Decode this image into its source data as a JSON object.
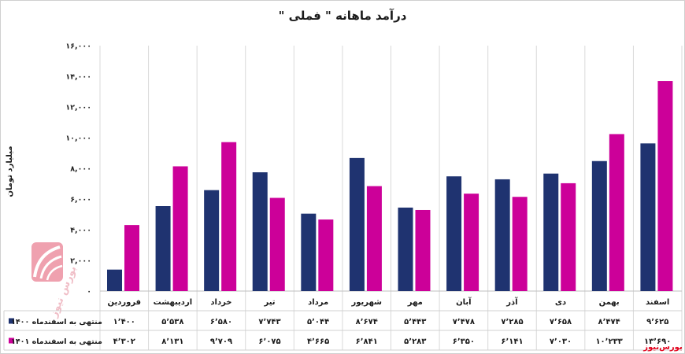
{
  "chart_data": {
    "type": "bar",
    "title": "درآمد ماهانه \" فملی \"",
    "ylabel": "میلیارد تومان",
    "xlabel": "",
    "categories": [
      "فروردین",
      "اردیبهشت",
      "خرداد",
      "تیر",
      "مرداد",
      "شهریور",
      "مهر",
      "آبان",
      "آذر",
      "دی",
      "بهمن",
      "اسفند"
    ],
    "series": [
      {
        "name": "منتهی به اسفندماه ۱۴۰۰",
        "color": "#1f3370",
        "values": [
          1400,
          5538,
          6580,
          7743,
          5044,
          8674,
          5443,
          7478,
          7285,
          7658,
          8474,
          9625
        ]
      },
      {
        "name": "منتهی به اسفندماه ۱۴۰۱",
        "color": "#cc0099",
        "values": [
          4302,
          8131,
          9709,
          6075,
          4665,
          6841,
          5283,
          6350,
          6141,
          7030,
          10233,
          13690
        ]
      }
    ],
    "ylim": [
      0,
      16000
    ],
    "yticks": [
      0,
      2000,
      4000,
      6000,
      8000,
      10000,
      12000,
      14000,
      16000
    ],
    "grid": true,
    "legend": "bottom"
  },
  "brand": {
    "watermark_logo_text": "بورس نیوز",
    "label": "بورس‌نیوز",
    "color": "#e3001b"
  }
}
